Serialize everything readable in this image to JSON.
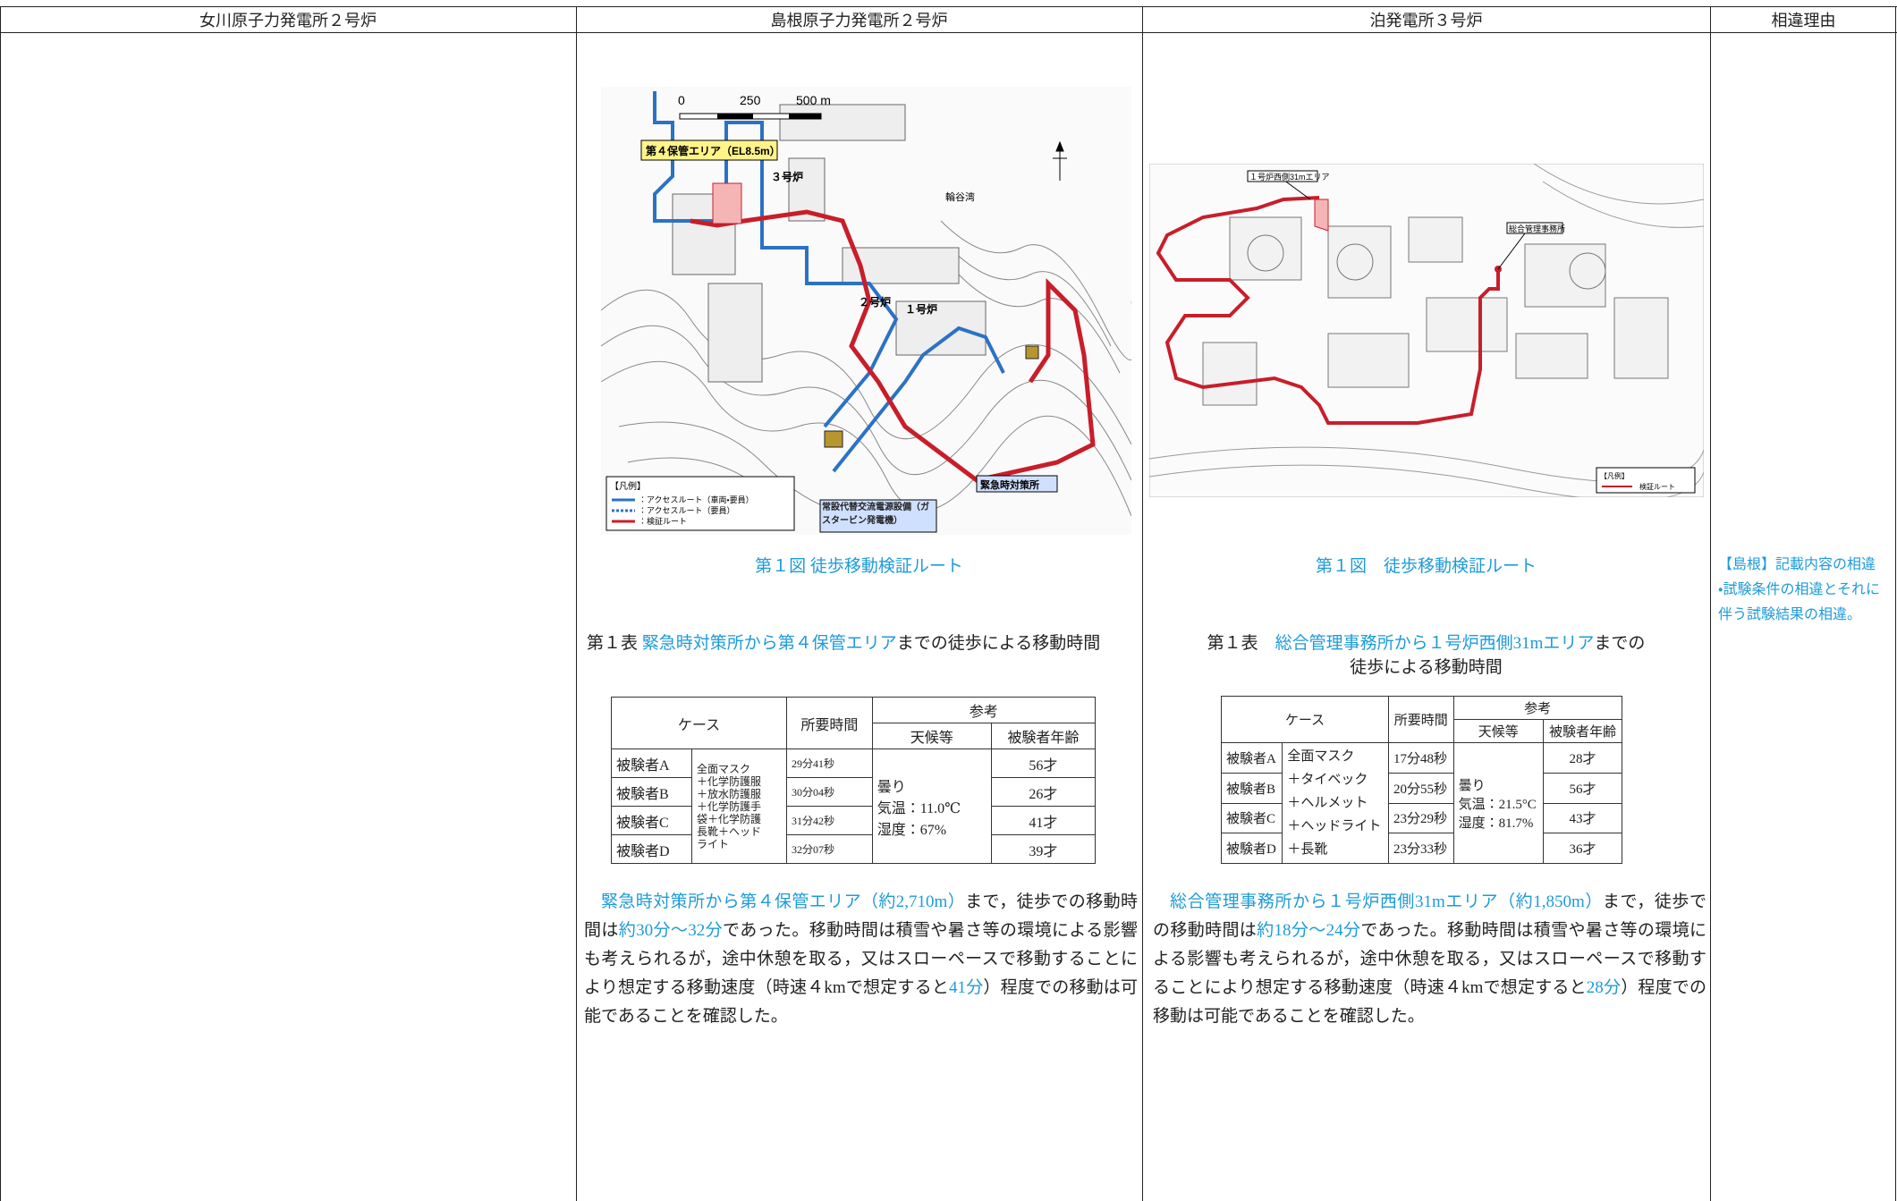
{
  "header": {
    "columns": [
      "女川原子力発電所２号炉",
      "島根原子力発電所２号炉",
      "泊発電所３号炉",
      "相違理由"
    ]
  },
  "shimane": {
    "map": {
      "scale": [
        "0",
        "250",
        "500 m"
      ],
      "area_label": "第４保管エリア（EL8.5m）",
      "unit3": "３号炉",
      "unit2": "２号炉",
      "unit1": "１号炉",
      "bay": "輪谷湾",
      "emergency": "緊急時対策所",
      "generator": "常設代替交流電源設備（ガスタービン発電機）",
      "legend_title": "【凡例】",
      "legend": [
        "：アクセスルート（車両・要員）",
        "：アクセスルート（要員）",
        "：検証ルート"
      ]
    },
    "figure_caption": "第１図 徒歩移動検証ルート",
    "table_title": [
      {
        "text": "第１表 "
      },
      {
        "text": "緊急時対策所から第４保管エリア",
        "color": "#1e9bd7"
      },
      {
        "text": "までの徒歩による移動時間"
      }
    ],
    "table": {
      "headers": [
        "ケース",
        "所要時間",
        "参考",
        "天候等",
        "被験者年齢"
      ],
      "equipment": [
        "全面マスク",
        "＋化学防護服",
        "＋放水防護服",
        "＋化学防護手",
        "袋＋化学防護",
        "長靴＋ヘッド",
        "ライト"
      ],
      "weather": [
        "曇り",
        "気温：11.0℃",
        "湿度：67%"
      ],
      "rows": [
        [
          "被験者A",
          "29分41秒",
          "56才"
        ],
        [
          "被験者B",
          "30分04秒",
          "26才"
        ],
        [
          "被験者C",
          "31分42秒",
          "41才"
        ],
        [
          "被験者D",
          "32分07秒",
          "39才"
        ]
      ]
    },
    "paragraph": [
      {
        "text": "緊急時対策所から第４保管エリア（約2,710m）",
        "color": "#1e9bd7"
      },
      {
        "text": "まで，徒歩での移動時間は"
      },
      {
        "text": "約30分～32分",
        "color": "#1e9bd7"
      },
      {
        "text": "であった。移動時間は積雪や暑さ等の環境による影響も考えられるが，途中休憩を取る，又はスローペースで移動することにより想定する移動速度（時速４kmで想定すると"
      },
      {
        "text": "41分",
        "color": "#1e9bd7"
      },
      {
        "text": "）程度での移動は可能であることを確認した。"
      }
    ]
  },
  "tomari": {
    "map": {
      "area_label": "１号炉西側31mエリア",
      "office": "総合管理事務所",
      "legend_title": "【凡例】",
      "legend": "検証ルート"
    },
    "figure_caption": "第１図　徒歩移動検証ルート",
    "table_title": [
      {
        "text": "第１表　"
      },
      {
        "text": "総合管理事務所から１号炉西側31mエリア",
        "color": "#1e9bd7"
      },
      {
        "text": "までの"
      }
    ],
    "table_title_line2": "徒歩による移動時間",
    "table": {
      "headers": [
        "ケース",
        "所要時間",
        "参考",
        "天候等",
        "被験者年齢"
      ],
      "equipment": [
        "全面マスク",
        "＋タイベック",
        "＋ヘルメット",
        "＋ヘッドライト",
        "＋長靴"
      ],
      "weather": [
        "曇り",
        "気温：21.5°C",
        "湿度：81.7%"
      ],
      "rows": [
        [
          "被験者A",
          "17分48秒",
          "28才"
        ],
        [
          "被験者B",
          "20分55秒",
          "56才"
        ],
        [
          "被験者C",
          "23分29秒",
          "43才"
        ],
        [
          "被験者D",
          "23分33秒",
          "36才"
        ]
      ]
    },
    "paragraph": [
      {
        "text": "総合管理事務所から１号炉西側31mエリア（約1,850m）",
        "color": "#1e9bd7"
      },
      {
        "text": "まで，徒歩での移動時間は"
      },
      {
        "text": "約18分～24分",
        "color": "#1e9bd7"
      },
      {
        "text": "であった。移動時間は積雪や暑さ等の環境による影響も考えられるが，途中休憩を取る，又はスローペースで移動することにより想定する移動速度（時速４kmで想定すると"
      },
      {
        "text": "28分",
        "color": "#1e9bd7"
      },
      {
        "text": "）程度での移動は可能であることを確認した。"
      }
    ]
  },
  "reason": [
    "【島根】記載内容の相違",
    "・試験条件の相違とそれに伴う試験結果の相違。"
  ]
}
